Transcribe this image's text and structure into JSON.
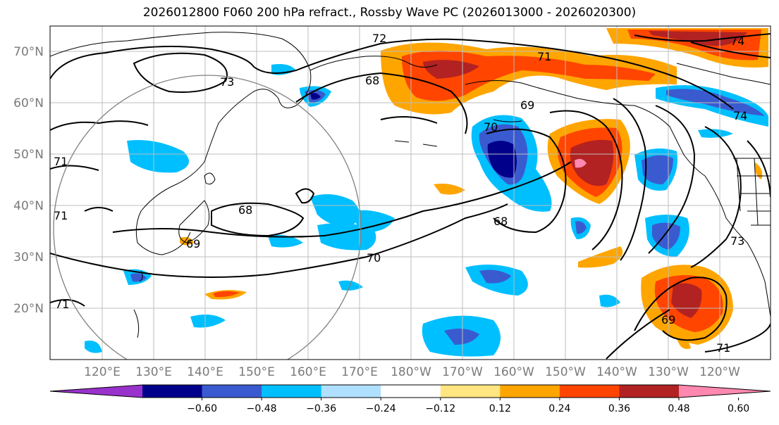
{
  "title": "2026012800 F060 200 hPa refract., Rossby Wave PC (2026013000 - 2026020300)",
  "lat_labels": [
    "70°N",
    "60°N",
    "50°N",
    "40°N",
    "30°N",
    "20°N"
  ],
  "lon_labels": [
    "120°E",
    "130°E",
    "140°E",
    "150°E",
    "160°E",
    "170°E",
    "180°W",
    "170°W",
    "160°W",
    "150°W",
    "140°W",
    "130°W",
    "120°W"
  ],
  "colorbar": {
    "colors": [
      "#9932cc",
      "#00008b",
      "#3a5bd0",
      "#00bfff",
      "#afe0ff",
      "#ffffff",
      "#ffe680",
      "#ffa500",
      "#ff4500",
      "#b22222",
      "#ff88b0"
    ],
    "tick_labels": [
      "−0.60",
      "−0.48",
      "−0.36",
      "−0.24",
      "−0.12",
      "0.12",
      "0.24",
      "0.36",
      "0.48",
      "0.60"
    ],
    "values": [
      -0.6,
      -0.48,
      -0.36,
      -0.24,
      -0.12,
      0.12,
      0.24,
      0.36,
      0.48,
      0.6
    ]
  },
  "contour_labels": [
    "72",
    "73",
    "71",
    "68",
    "74",
    "74",
    "70",
    "68",
    "69",
    "68",
    "69",
    "70",
    "71",
    "71",
    "71",
    "73",
    "69",
    "71"
  ]
}
